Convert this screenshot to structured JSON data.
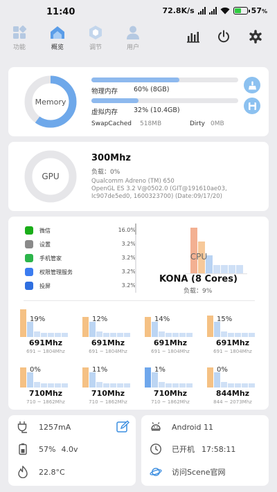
{
  "status": {
    "time": "11:40",
    "speed": "72.8K/s",
    "battery": "57"
  },
  "tabs": [
    {
      "label": "功能"
    },
    {
      "label": "概览"
    },
    {
      "label": "调节"
    },
    {
      "label": "用户"
    }
  ],
  "actions": [
    "chart-icon",
    "power-icon",
    "gear-icon"
  ],
  "memory": {
    "ring_label": "Memory",
    "ring_fraction": 0.6,
    "physical": {
      "label": "物理内存",
      "value": "60% (8GB)",
      "fraction": 0.6
    },
    "virtual": {
      "label": "虚拟内存",
      "value": "32% (10.4GB)",
      "fraction": 0.32
    },
    "swapcached_label": "SwapCached",
    "swapcached_value": "518MB",
    "dirty_label": "Dirty",
    "dirty_value": "0MB"
  },
  "gpu": {
    "ring_label": "GPU",
    "ring_fraction": 0,
    "freq": "300Mhz",
    "load": "负载：0%",
    "model": "Qualcomm Adreno (TM) 650",
    "driver1": "OpenGL ES 3.2 V@0502.0 (GIT@191610ae03,",
    "driver2": "Ic907de5ed0, 1600323700) (Date:09/17/20)"
  },
  "apps": [
    {
      "name": "微信",
      "percent": "16.0%",
      "color": "#1aad19"
    },
    {
      "name": "设置",
      "percent": "3.2%",
      "color": "#8a8a8a"
    },
    {
      "name": "手机管家",
      "percent": "3.2%",
      "color": "#2cb54b"
    },
    {
      "name": "权限管理服务",
      "percent": "3.2%",
      "color": "#3b7cf0"
    },
    {
      "name": "投屏",
      "percent": "3.2%",
      "color": "#2f6fe0"
    }
  ],
  "cpu": {
    "label": "CPU",
    "name": "KONA (8 Cores)",
    "load": "负载：9%"
  },
  "cores": [
    {
      "percent": "19%",
      "freq": "691Mhz",
      "range": "691 ~ 1804Mhz",
      "load": 0.19
    },
    {
      "percent": "12%",
      "freq": "691Mhz",
      "range": "691 ~ 1804Mhz",
      "load": 0.12
    },
    {
      "percent": "14%",
      "freq": "691Mhz",
      "range": "691 ~ 1804Mhz",
      "load": 0.14
    },
    {
      "percent": "15%",
      "freq": "691Mhz",
      "range": "691 ~ 1804Mhz",
      "load": 0.15
    },
    {
      "percent": "0%",
      "freq": "710Mhz",
      "range": "710 ~ 1862Mhz",
      "load": 0
    },
    {
      "percent": "11%",
      "freq": "710Mhz",
      "range": "710 ~ 1862Mhz",
      "load": 0.11
    },
    {
      "percent": "1%",
      "freq": "710Mhz",
      "range": "710 ~ 1862Mhz",
      "load": 0.01
    },
    {
      "percent": "0%",
      "freq": "844Mhz",
      "range": "844 ~ 2073Mhz",
      "load": 0
    }
  ],
  "battery": {
    "current": "1257mA",
    "level": "57%",
    "voltage": "4.0v",
    "temp": "22.8°C"
  },
  "system": {
    "android": "Android 11",
    "uptime_label": "已开机",
    "uptime": "17:58:11",
    "link": "访问Scene官网"
  }
}
